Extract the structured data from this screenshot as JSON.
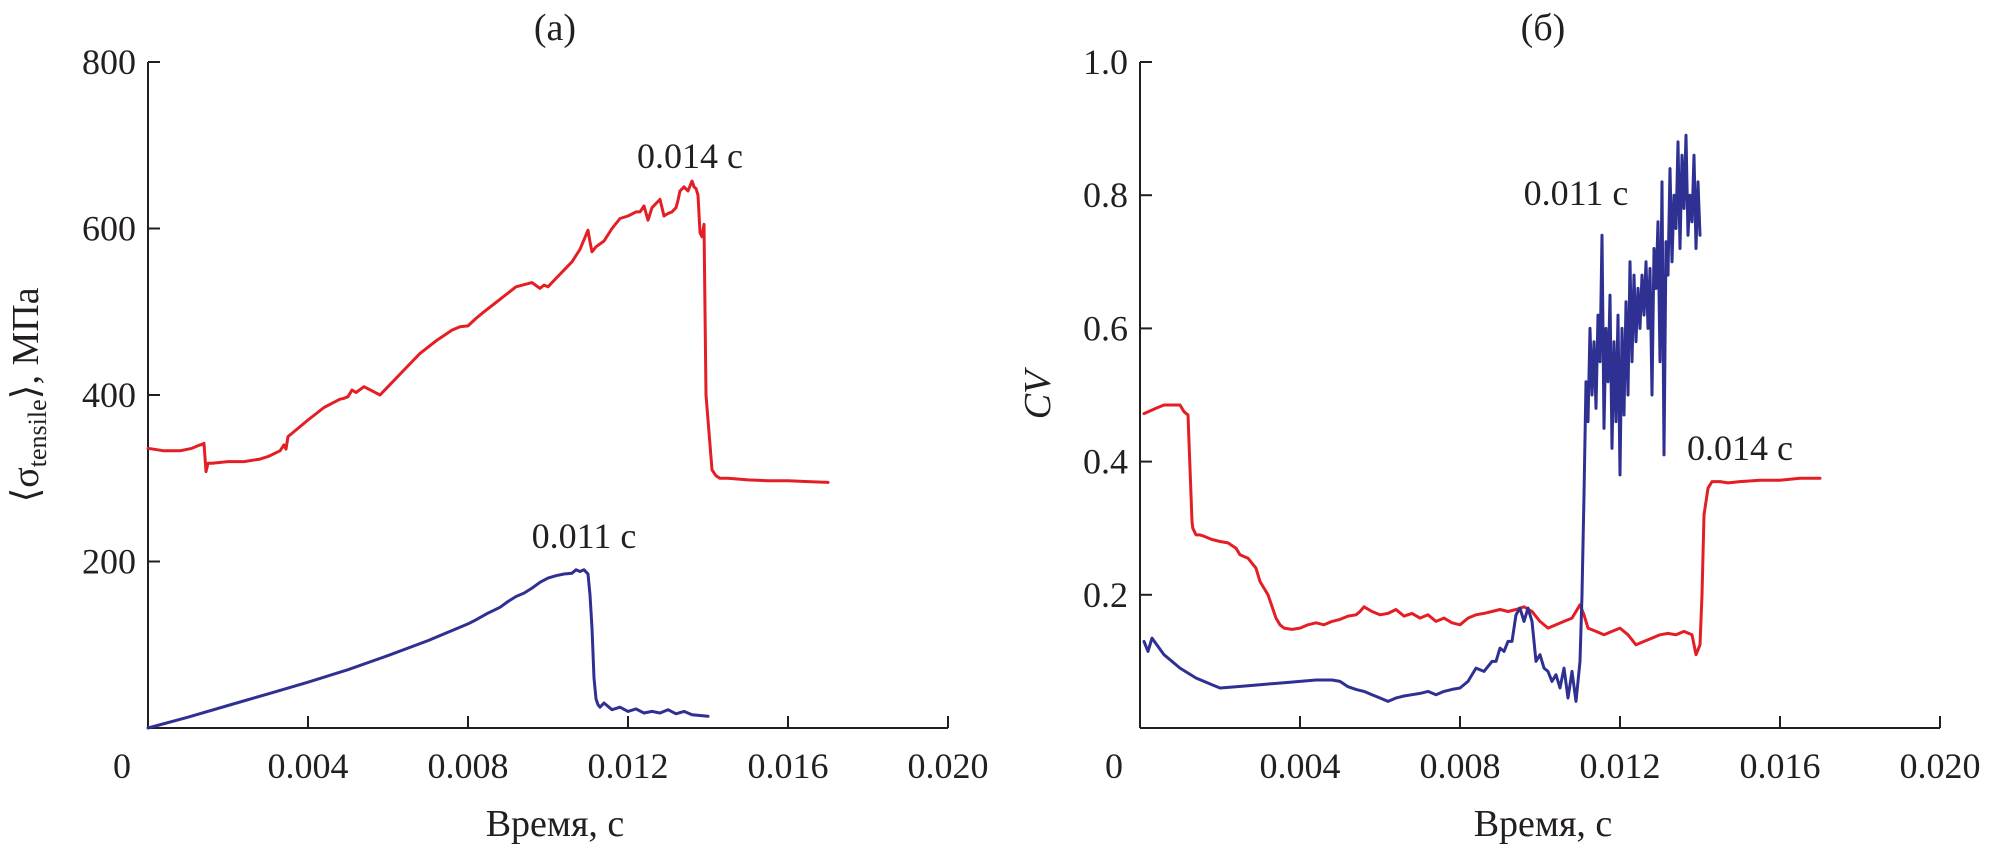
{
  "chart_data": [
    {
      "type": "line",
      "panel_label": "(a)",
      "title": "",
      "xlabel": "Время, с",
      "ylabel_main": "⟨σ",
      "ylabel_sub": "tensile",
      "ylabel_tail": "⟩, МПа",
      "xlim": [
        0,
        0.02
      ],
      "ylim": [
        0,
        800
      ],
      "x_ticks": [
        0,
        0.004,
        0.008,
        0.012,
        0.016,
        0.02
      ],
      "x_tick_labels": [
        "0",
        "0.004",
        "0.008",
        "0.012",
        "0.016",
        "0.020"
      ],
      "y_ticks": [
        200,
        400,
        600,
        800
      ],
      "y_tick_labels": [
        "200",
        "400",
        "600",
        "800"
      ],
      "grid": false,
      "series": [
        {
          "color": "#e31e24",
          "x": [
            0.0,
            0.0004,
            0.0008,
            0.0011,
            0.0013,
            0.00132,
            0.0014,
            0.00145,
            0.0015,
            0.0016,
            0.002,
            0.0024,
            0.0028,
            0.003,
            0.0033,
            0.0034,
            0.00345,
            0.0035,
            0.0037,
            0.004,
            0.0044,
            0.0046,
            0.0048,
            0.0049,
            0.005,
            0.0051,
            0.0052,
            0.0054,
            0.0056,
            0.0058,
            0.006,
            0.0064,
            0.0068,
            0.0072,
            0.0076,
            0.0078,
            0.008,
            0.0082,
            0.0084,
            0.0088,
            0.0092,
            0.0096,
            0.0098,
            0.0099,
            0.01,
            0.0102,
            0.0104,
            0.0106,
            0.0108,
            0.011,
            0.01105,
            0.0111,
            0.0112,
            0.0114,
            0.0116,
            0.0118,
            0.012,
            0.0122,
            0.0123,
            0.0124,
            0.0125,
            0.0126,
            0.0127,
            0.0128,
            0.0129,
            0.013,
            0.0131,
            0.0132,
            0.01325,
            0.0133,
            0.0134,
            0.0135,
            0.0136,
            0.01365,
            0.0137,
            0.01375,
            0.0138,
            0.01385,
            0.0139,
            0.01395,
            0.014,
            0.01405,
            0.0141,
            0.0142,
            0.0143,
            0.0145,
            0.015,
            0.0155,
            0.016,
            0.0165,
            0.017
          ],
          "y": [
            336,
            333,
            333,
            336,
            340,
            340,
            342,
            308,
            318,
            318,
            320,
            320,
            323,
            326,
            333,
            340,
            335,
            350,
            358,
            370,
            385,
            390,
            395,
            396,
            398,
            406,
            403,
            410,
            405,
            400,
            410,
            430,
            450,
            465,
            478,
            482,
            483,
            492,
            500,
            515,
            530,
            535,
            528,
            532,
            530,
            540,
            550,
            560,
            575,
            598,
            584,
            572,
            578,
            585,
            600,
            612,
            615,
            620,
            620,
            627,
            610,
            625,
            630,
            635,
            615,
            618,
            620,
            625,
            634,
            645,
            650,
            645,
            657,
            650,
            648,
            640,
            595,
            590,
            605,
            400,
            370,
            340,
            310,
            303,
            300,
            300,
            298,
            297,
            297,
            296,
            295
          ]
        },
        {
          "color": "#2e3192",
          "x": [
            0.0,
            0.001,
            0.002,
            0.003,
            0.004,
            0.005,
            0.006,
            0.007,
            0.008,
            0.0082,
            0.0085,
            0.0088,
            0.009,
            0.0092,
            0.0094,
            0.0096,
            0.0098,
            0.01,
            0.0102,
            0.0104,
            0.0106,
            0.0107,
            0.0108,
            0.0109,
            0.011,
            0.01105,
            0.0111,
            0.01115,
            0.0112,
            0.01125,
            0.0113,
            0.0114,
            0.0116,
            0.0118,
            0.012,
            0.0122,
            0.0124,
            0.0126,
            0.0128,
            0.013,
            0.0132,
            0.0134,
            0.0136,
            0.0138,
            0.014
          ],
          "y": [
            0,
            13,
            27,
            41,
            55,
            70,
            87,
            105,
            125,
            130,
            138,
            145,
            152,
            158,
            162,
            168,
            175,
            180,
            183,
            185,
            186,
            190,
            188,
            190,
            185,
            160,
            120,
            60,
            35,
            28,
            25,
            30,
            22,
            25,
            20,
            23,
            18,
            20,
            18,
            22,
            17,
            20,
            16,
            15,
            14
          ]
        }
      ],
      "annotations": [
        "0.014 с",
        "0.011 с"
      ]
    },
    {
      "type": "line",
      "panel_label": "(б)",
      "title": "",
      "xlabel": "Время, с",
      "ylabel": "CV",
      "xlim": [
        0,
        0.02
      ],
      "ylim": [
        0,
        1.0
      ],
      "x_ticks": [
        0,
        0.004,
        0.008,
        0.012,
        0.016,
        0.02
      ],
      "x_tick_labels": [
        "0",
        "0.004",
        "0.008",
        "0.012",
        "0.016",
        "0.020"
      ],
      "y_ticks": [
        0.2,
        0.4,
        0.6,
        0.8,
        1.0
      ],
      "y_tick_labels": [
        "0.2",
        "0.4",
        "0.6",
        "0.8",
        "1.0"
      ],
      "grid": false,
      "series": [
        {
          "color": "#e31e24",
          "x": [
            0.0001,
            0.0004,
            0.0006,
            0.0008,
            0.001,
            0.0011,
            0.0012,
            0.0013,
            0.00132,
            0.0014,
            0.0015,
            0.0016,
            0.0018,
            0.002,
            0.0022,
            0.0024,
            0.0025,
            0.0027,
            0.0029,
            0.003,
            0.0032,
            0.0034,
            0.0035,
            0.0036,
            0.0038,
            0.004,
            0.0042,
            0.0044,
            0.0046,
            0.0048,
            0.005,
            0.0052,
            0.0054,
            0.0055,
            0.0056,
            0.0058,
            0.006,
            0.0062,
            0.0064,
            0.0066,
            0.0068,
            0.007,
            0.0072,
            0.0074,
            0.0076,
            0.0078,
            0.008,
            0.0082,
            0.0084,
            0.0086,
            0.0088,
            0.009,
            0.0092,
            0.0094,
            0.0096,
            0.0098,
            0.01,
            0.0102,
            0.0104,
            0.0106,
            0.0108,
            0.011,
            0.0111,
            0.0112,
            0.0114,
            0.0116,
            0.0118,
            0.012,
            0.0122,
            0.0124,
            0.0126,
            0.0128,
            0.013,
            0.0132,
            0.0134,
            0.0136,
            0.0138,
            0.0139,
            0.014,
            0.01405,
            0.0141,
            0.0142,
            0.0143,
            0.0145,
            0.0147,
            0.015,
            0.0155,
            0.016,
            0.0165,
            0.017
          ],
          "y": [
            0.472,
            0.48,
            0.485,
            0.485,
            0.485,
            0.475,
            0.47,
            0.31,
            0.3,
            0.29,
            0.29,
            0.288,
            0.283,
            0.28,
            0.278,
            0.27,
            0.26,
            0.255,
            0.24,
            0.22,
            0.2,
            0.165,
            0.155,
            0.15,
            0.148,
            0.15,
            0.155,
            0.158,
            0.155,
            0.16,
            0.163,
            0.168,
            0.17,
            0.175,
            0.182,
            0.175,
            0.17,
            0.172,
            0.178,
            0.168,
            0.172,
            0.165,
            0.17,
            0.16,
            0.165,
            0.158,
            0.155,
            0.165,
            0.17,
            0.172,
            0.175,
            0.178,
            0.175,
            0.178,
            0.182,
            0.175,
            0.16,
            0.15,
            0.155,
            0.16,
            0.165,
            0.185,
            0.17,
            0.15,
            0.145,
            0.14,
            0.145,
            0.15,
            0.14,
            0.125,
            0.13,
            0.135,
            0.14,
            0.142,
            0.14,
            0.145,
            0.14,
            0.11,
            0.125,
            0.2,
            0.32,
            0.36,
            0.37,
            0.37,
            0.368,
            0.37,
            0.372,
            0.372,
            0.375,
            0.375
          ]
        },
        {
          "color": "#2e3192",
          "x": [
            0.0001,
            0.0002,
            0.0003,
            0.0006,
            0.001,
            0.0014,
            0.0018,
            0.002,
            0.0024,
            0.003,
            0.0036,
            0.004,
            0.0044,
            0.0046,
            0.0048,
            0.005,
            0.0052,
            0.0054,
            0.0056,
            0.0058,
            0.006,
            0.0062,
            0.0064,
            0.0066,
            0.0068,
            0.007,
            0.0072,
            0.0074,
            0.0076,
            0.0078,
            0.008,
            0.0082,
            0.0084,
            0.0086,
            0.0088,
            0.0089,
            0.009,
            0.0091,
            0.0092,
            0.0093,
            0.0094,
            0.0095,
            0.0096,
            0.0097,
            0.0098,
            0.0099,
            0.01,
            0.0101,
            0.0102,
            0.0103,
            0.0104,
            0.0105,
            0.0106,
            0.0107,
            0.0108,
            0.0109,
            0.011,
            0.01105,
            0.0111,
            0.01115,
            0.0112,
            0.01125,
            0.0113,
            0.01135,
            0.0114,
            0.01145,
            0.0115,
            0.01155,
            0.0116,
            0.01165,
            0.0117,
            0.01175,
            0.0118,
            0.01185,
            0.0119,
            0.01195,
            0.012,
            0.01205,
            0.0121,
            0.01215,
            0.0122,
            0.01225,
            0.0123,
            0.01235,
            0.0124,
            0.01245,
            0.0125,
            0.01255,
            0.0126,
            0.01265,
            0.0127,
            0.01275,
            0.0128,
            0.01285,
            0.0129,
            0.01295,
            0.013,
            0.01305,
            0.0131,
            0.01315,
            0.0132,
            0.01325,
            0.0133,
            0.01335,
            0.0134,
            0.01345,
            0.0135,
            0.01355,
            0.0136,
            0.01365,
            0.0137,
            0.01375,
            0.0138,
            0.01385,
            0.0139,
            0.01395,
            0.014
          ],
          "y": [
            0.13,
            0.115,
            0.135,
            0.11,
            0.09,
            0.075,
            0.065,
            0.06,
            0.062,
            0.065,
            0.068,
            0.07,
            0.072,
            0.072,
            0.072,
            0.07,
            0.062,
            0.058,
            0.055,
            0.05,
            0.045,
            0.04,
            0.045,
            0.048,
            0.05,
            0.052,
            0.055,
            0.05,
            0.055,
            0.058,
            0.06,
            0.07,
            0.09,
            0.085,
            0.1,
            0.1,
            0.12,
            0.115,
            0.13,
            0.13,
            0.17,
            0.18,
            0.16,
            0.18,
            0.16,
            0.1,
            0.11,
            0.09,
            0.085,
            0.07,
            0.08,
            0.06,
            0.09,
            0.045,
            0.085,
            0.04,
            0.1,
            0.2,
            0.35,
            0.52,
            0.46,
            0.6,
            0.5,
            0.58,
            0.48,
            0.62,
            0.55,
            0.74,
            0.45,
            0.6,
            0.52,
            0.65,
            0.42,
            0.58,
            0.46,
            0.62,
            0.38,
            0.6,
            0.47,
            0.64,
            0.5,
            0.7,
            0.55,
            0.68,
            0.58,
            0.66,
            0.6,
            0.68,
            0.62,
            0.7,
            0.6,
            0.69,
            0.5,
            0.72,
            0.66,
            0.76,
            0.55,
            0.82,
            0.41,
            0.73,
            0.68,
            0.84,
            0.7,
            0.8,
            0.75,
            0.88,
            0.72,
            0.86,
            0.78,
            0.89,
            0.74,
            0.8,
            0.76,
            0.86,
            0.72,
            0.82,
            0.74
          ]
        }
      ],
      "annotations": [
        "0.011 с",
        "0.014 с"
      ]
    }
  ]
}
